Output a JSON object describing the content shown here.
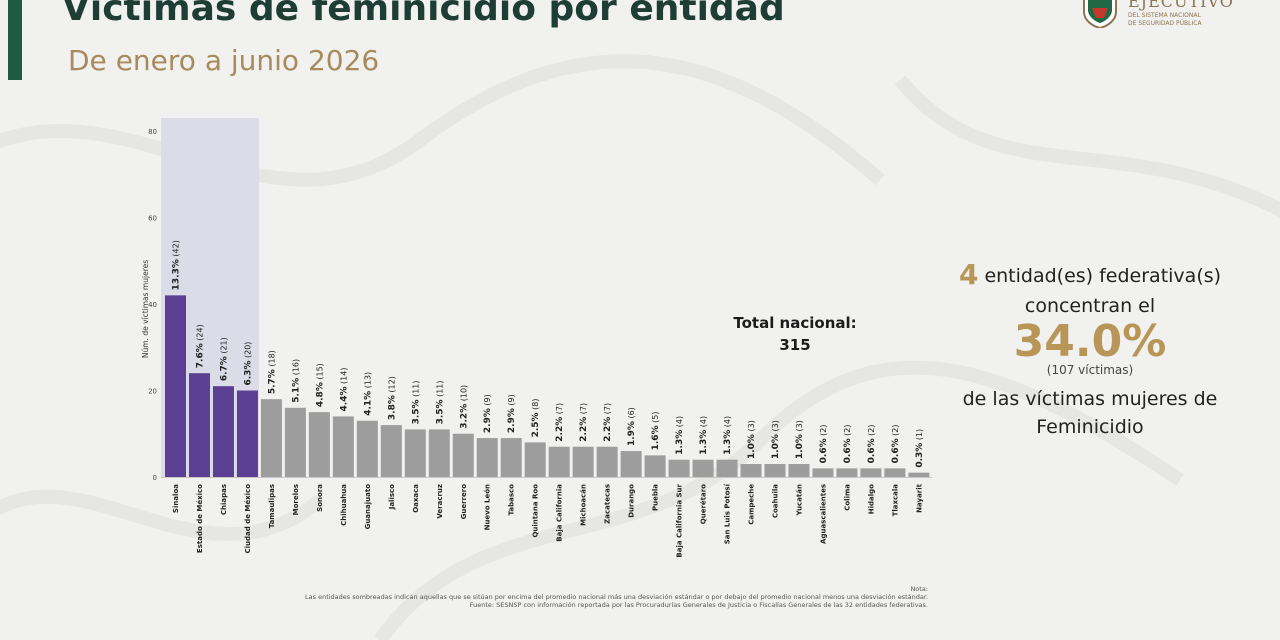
{
  "header": {
    "title": "Víctimas de feminicidio por entidad",
    "subtitle": "De enero a junio 2026"
  },
  "logo": {
    "text": "EJECUTIVO",
    "subtext_line1": "DEL SISTEMA NACIONAL",
    "subtext_line2": "DE SEGURIDAD PÚBLICA"
  },
  "colors": {
    "highlight_bar": "#5b3f93",
    "normal_bar": "#9d9d9d",
    "highlight_band": "#dcdce8",
    "accent_gold": "#b89658",
    "title_green": "#1e3d34"
  },
  "chart_data": {
    "type": "bar",
    "ylabel": "Núm. de víctimas mujeres",
    "xlabel": "",
    "ylim": [
      0,
      80
    ],
    "yticks": [
      0,
      20,
      40,
      60,
      80
    ],
    "grid": false,
    "highlighted_count": 4,
    "categories": [
      "Sinaloa",
      "Estado de México",
      "Chiapas",
      "Ciudad de México",
      "Tamaulipas",
      "Morelos",
      "Sonora",
      "Chihuahua",
      "Guanajuato",
      "Jalisco",
      "Oaxaca",
      "Veracruz",
      "Guerrero",
      "Nuevo León",
      "Tabasco",
      "Quintana Roo",
      "Baja California",
      "Michoacán",
      "Zacatecas",
      "Durango",
      "Puebla",
      "Baja California Sur",
      "Querétaro",
      "San Luis Potosí",
      "Campeche",
      "Coahuila",
      "Yucatán",
      "Aguascalientes",
      "Colima",
      "Hidalgo",
      "Tlaxcala",
      "Nayarit"
    ],
    "values": [
      42,
      24,
      21,
      20,
      18,
      16,
      15,
      14,
      13,
      12,
      11,
      11,
      10,
      9,
      9,
      8,
      7,
      7,
      7,
      6,
      5,
      4,
      4,
      4,
      3,
      3,
      3,
      2,
      2,
      2,
      2,
      1
    ],
    "percents": [
      "13.3%",
      "7.6%",
      "6.7%",
      "6.3%",
      "5.7%",
      "5.1%",
      "4.8%",
      "4.4%",
      "4.1%",
      "3.8%",
      "3.5%",
      "3.5%",
      "3.2%",
      "2.9%",
      "2.9%",
      "2.5%",
      "2.2%",
      "2.2%",
      "2.2%",
      "1.9%",
      "1.6%",
      "1.3%",
      "1.3%",
      "1.3%",
      "1.0%",
      "1.0%",
      "1.0%",
      "0.6%",
      "0.6%",
      "0.6%",
      "0.6%",
      "0.3%"
    ]
  },
  "total": {
    "label": "Total nacional:",
    "value": "315"
  },
  "summary": {
    "count": "4",
    "line1": "entidad(es)  federativa(s)",
    "line2": "concentran el",
    "percent": "34.0%",
    "victims": "(107 víctimas)",
    "line3": "de las  víctimas  mujeres de",
    "line4": "Feminicidio"
  },
  "notes": {
    "label": "Nota:",
    "line1": "Las entidades sombreadas indican aquellas que se sitúan por encima del promedio nacional más una desviación estándar o por debajo del promedio nacional menos una desviación estándar.",
    "line2": "Fuente: SESNSP con información reportada por las Procuradurías Generales de Justicia o Fiscalías Generales de las 32 entidades federativas."
  }
}
